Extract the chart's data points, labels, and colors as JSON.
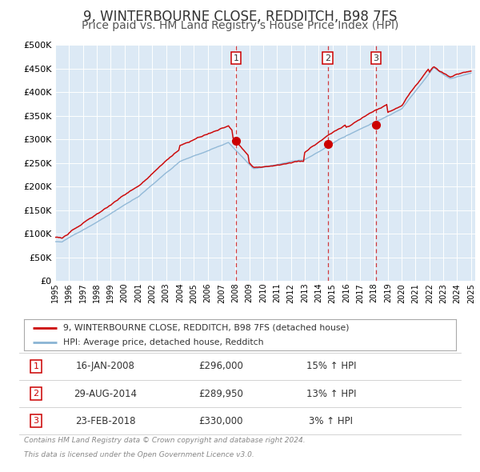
{
  "title": "9, WINTERBOURNE CLOSE, REDDITCH, B98 7FS",
  "subtitle": "Price paid vs. HM Land Registry's House Price Index (HPI)",
  "title_fontsize": 12,
  "subtitle_fontsize": 10,
  "background_color": "#ffffff",
  "plot_bg_color": "#dce9f5",
  "grid_color": "#ffffff",
  "red_line_color": "#cc0000",
  "blue_line_color": "#8ab4d4",
  "transactions": [
    {
      "year": 2008.04,
      "price": 296000,
      "label": "1"
    },
    {
      "year": 2014.66,
      "price": 289950,
      "label": "2"
    },
    {
      "year": 2018.14,
      "price": 330000,
      "label": "3"
    }
  ],
  "legend_label_red": "9, WINTERBOURNE CLOSE, REDDITCH, B98 7FS (detached house)",
  "legend_label_blue": "HPI: Average price, detached house, Redditch",
  "table_rows": [
    {
      "num": "1",
      "date": "16-JAN-2008",
      "price": "£296,000",
      "change": "15% ↑ HPI"
    },
    {
      "num": "2",
      "date": "29-AUG-2014",
      "price": "£289,950",
      "change": "13% ↑ HPI"
    },
    {
      "num": "3",
      "date": "23-FEB-2018",
      "price": "£330,000",
      "change": "3% ↑ HPI"
    }
  ],
  "footer_line1": "Contains HM Land Registry data © Crown copyright and database right 2024.",
  "footer_line2": "This data is licensed under the Open Government Licence v3.0.",
  "ylim": [
    0,
    500000
  ],
  "yticks": [
    0,
    50000,
    100000,
    150000,
    200000,
    250000,
    300000,
    350000,
    400000,
    450000,
    500000
  ],
  "xstart": 1995,
  "xend": 2025
}
